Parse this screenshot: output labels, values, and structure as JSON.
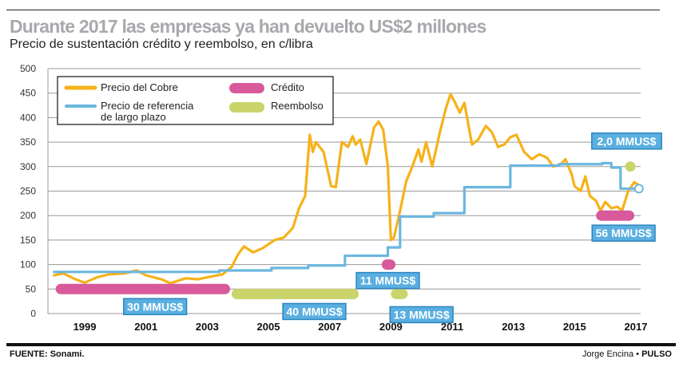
{
  "header": {
    "title": "Durante 2017 las empresas ya han devuelto US$2 millones",
    "subtitle": "Precio de sustentación crédito y reembolso, en c/libra"
  },
  "footer": {
    "source": "FUENTE: Sonami.",
    "author": "Jorge Encina",
    "separator": "•",
    "outlet": "PULSO"
  },
  "colors": {
    "copper": "#f5b21a",
    "reference": "#6bb7de",
    "credit": "#d85a9b",
    "refund": "#c9d46a",
    "label_bg": "#5aafe0",
    "label_border": "#2b86c0",
    "grid": "#999999"
  },
  "chart_data": {
    "type": "line",
    "title": "Durante 2017 las empresas ya han devuelto US$2 millones",
    "subtitle": "Precio de sustentación crédito y reembolso, en c/libra",
    "xlabel": "",
    "ylabel": "c/libra",
    "xlim": [
      1998,
      2017.4
    ],
    "ylim": [
      0,
      500
    ],
    "grid": true,
    "yticks": [
      0,
      50,
      100,
      150,
      200,
      250,
      300,
      350,
      400,
      450,
      500
    ],
    "xticks": [
      1999,
      2001,
      2003,
      2005,
      2007,
      2009,
      2011,
      2013,
      2015,
      2017
    ],
    "legend_position": "top-left",
    "legend": [
      {
        "key": "copper",
        "label": "Precio del Cobre"
      },
      {
        "key": "reference",
        "label_line1": "Precio de referencia",
        "label_line2": "de largo plazo"
      },
      {
        "key": "credit",
        "label": "Crédito"
      },
      {
        "key": "refund",
        "label": "Reembolso"
      }
    ],
    "series": [
      {
        "name": "Precio del Cobre",
        "key": "copper",
        "x": [
          1998.0,
          1998.3,
          1998.7,
          1999.0,
          1999.4,
          1999.8,
          2000.3,
          2000.7,
          2001.0,
          2001.5,
          2001.8,
          2002.3,
          2002.7,
          2003.0,
          2003.5,
          2003.8,
          2004.0,
          2004.2,
          2004.5,
          2004.8,
          2005.2,
          2005.5,
          2005.8,
          2006.0,
          2006.2,
          2006.35,
          2006.45,
          2006.55,
          2006.8,
          2007.05,
          2007.2,
          2007.4,
          2007.6,
          2007.75,
          2007.85,
          2008.0,
          2008.2,
          2008.45,
          2008.6,
          2008.75,
          2008.9,
          2009.0,
          2009.1,
          2009.3,
          2009.5,
          2009.7,
          2009.9,
          2010.0,
          2010.15,
          2010.35,
          2010.6,
          2010.8,
          2010.95,
          2011.1,
          2011.25,
          2011.4,
          2011.65,
          2011.85,
          2012.1,
          2012.3,
          2012.5,
          2012.7,
          2012.9,
          2013.1,
          2013.35,
          2013.6,
          2013.85,
          2014.1,
          2014.3,
          2014.55,
          2014.7,
          2014.9,
          2015.0,
          2015.2,
          2015.35,
          2015.5,
          2015.7,
          2015.85,
          2016.0,
          2016.2,
          2016.4,
          2016.55,
          2016.75,
          2016.95,
          2017.1
        ],
        "y": [
          78,
          82,
          70,
          63,
          74,
          80,
          82,
          88,
          78,
          70,
          62,
          72,
          70,
          74,
          80,
          95,
          120,
          137,
          125,
          133,
          150,
          155,
          175,
          215,
          240,
          365,
          330,
          350,
          330,
          260,
          258,
          350,
          340,
          362,
          345,
          355,
          305,
          380,
          392,
          375,
          300,
          150,
          155,
          210,
          270,
          300,
          335,
          310,
          350,
          300,
          370,
          420,
          448,
          430,
          410,
          430,
          345,
          355,
          383,
          370,
          340,
          345,
          360,
          365,
          330,
          315,
          325,
          318,
          300,
          305,
          315,
          285,
          260,
          250,
          280,
          240,
          230,
          210,
          228,
          215,
          218,
          210,
          250,
          268,
          262
        ]
      },
      {
        "name": "Precio de referencia de largo plazo",
        "key": "reference",
        "step": true,
        "x": [
          1998.0,
          2003.4,
          2005.1,
          2006.3,
          2007.5,
          2008.9,
          2009.3,
          2010.4,
          2011.4,
          2012.9,
          2014.5,
          2015.9,
          2016.2,
          2016.5,
          2017.1
        ],
        "y": [
          85,
          88,
          93,
          98,
          118,
          135,
          198,
          205,
          258,
          302,
          305,
          307,
          298,
          255,
          255
        ],
        "end_marker": true
      }
    ],
    "bars": [
      {
        "type": "Crédito",
        "key": "credit",
        "start": 1998.05,
        "end": 2003.75,
        "level": 50,
        "label": "30 MMUS$"
      },
      {
        "type": "Reembolso",
        "key": "refund",
        "start": 2003.8,
        "end": 2007.95,
        "level": 40,
        "label": "40 MMUS$"
      },
      {
        "type": "Crédito",
        "key": "credit",
        "start": 2008.7,
        "end": 2009.15,
        "level": 100,
        "label": "11 MMUS$"
      },
      {
        "type": "Reembolso",
        "key": "refund",
        "start": 2009.0,
        "end": 2009.55,
        "level": 40,
        "label": "13 MMUS$"
      },
      {
        "type": "Crédito",
        "key": "credit",
        "start": 2015.7,
        "end": 2016.95,
        "level": 200,
        "label": "56 MMUS$"
      },
      {
        "type": "Reembolso",
        "key": "refund",
        "start": 2016.65,
        "end": 2016.95,
        "level": 300,
        "label": "2,0 MMUS$"
      }
    ]
  }
}
